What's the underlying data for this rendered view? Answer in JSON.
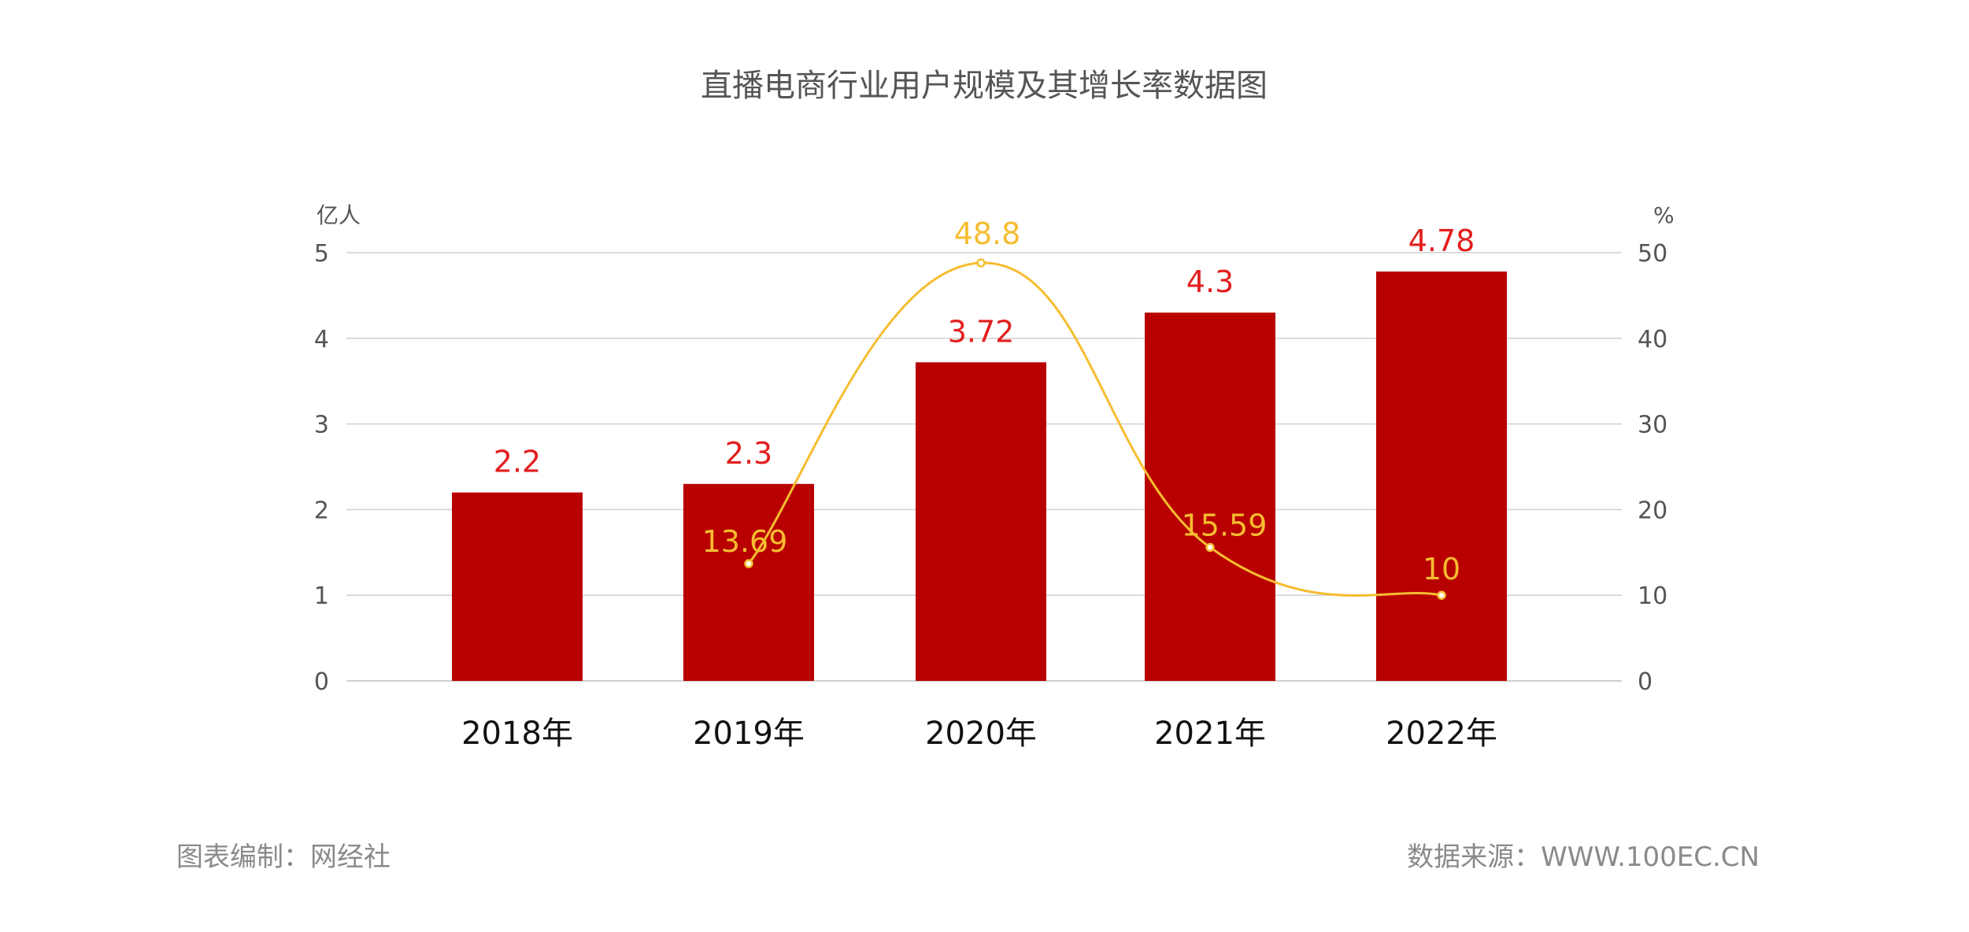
{
  "chart_data": {
    "type": "bar",
    "title": "直播电商行业用户规模及其增长率数据图",
    "categories": [
      "2018年",
      "2019年",
      "2020年",
      "2021年",
      "2022年"
    ],
    "series": [
      {
        "axis": "left",
        "type": "bar",
        "values": [
          2.2,
          2.3,
          3.72,
          4.3,
          4.78
        ],
        "labels": [
          "2.2",
          "2.3",
          "3.72",
          "4.3",
          "4.78"
        ],
        "color": "#b80000",
        "label_color": "#e31e1e"
      },
      {
        "axis": "right",
        "type": "line",
        "smooth": true,
        "values": [
          null,
          13.69,
          48.8,
          15.59,
          10
        ],
        "labels": [
          "",
          "13.69",
          "48.8",
          "15.59",
          "10"
        ],
        "color": "#f6bd30"
      }
    ],
    "y_left": {
      "unit": "亿人",
      "ylim": [
        0,
        5
      ],
      "ticks": [
        "0",
        "1",
        "2",
        "3",
        "4",
        "5"
      ]
    },
    "y_right": {
      "unit": "%",
      "ylim": [
        0,
        50
      ],
      "ticks": [
        "0",
        "10",
        "20",
        "30",
        "40",
        "50"
      ]
    },
    "grid": true,
    "legend": "none"
  },
  "footer": {
    "credit": "图表编制：网经社",
    "source": "数据来源：WWW.100EC.CN"
  },
  "colors": {
    "grid": "#d0d0d0",
    "axis_text": "#555555",
    "category_text": "#111111",
    "title_text": "#555555",
    "footer_text": "#8a8a8a"
  }
}
